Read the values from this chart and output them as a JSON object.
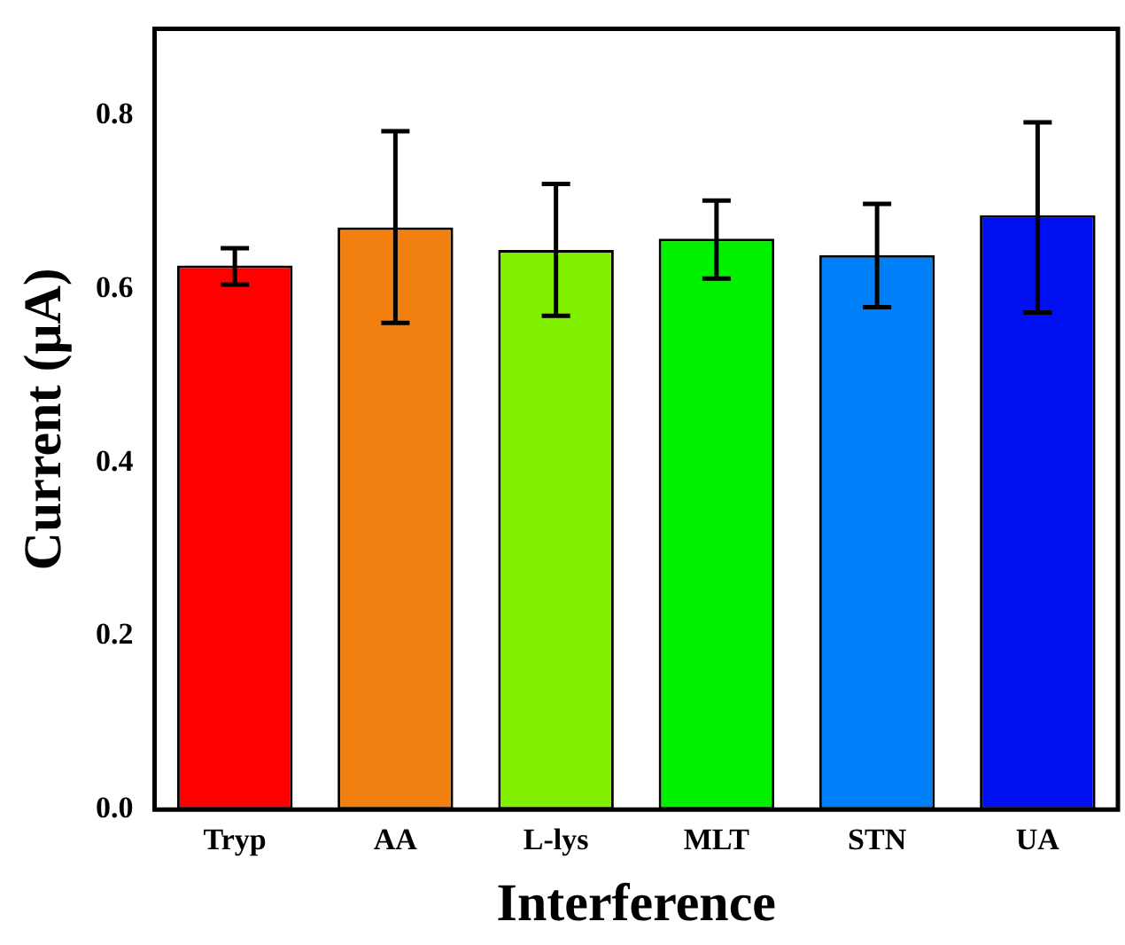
{
  "chart_data": {
    "type": "bar",
    "xlabel": "Interference",
    "ylabel": "Current (μA)",
    "categories": [
      "Tryp",
      "AA",
      "L-lys",
      "MLT",
      "STN",
      "UA"
    ],
    "values": [
      0.627,
      0.671,
      0.645,
      0.658,
      0.639,
      0.685
    ],
    "errors": [
      [
        0.605,
        0.647
      ],
      [
        0.561,
        0.782
      ],
      [
        0.569,
        0.721
      ],
      [
        0.612,
        0.702
      ],
      [
        0.579,
        0.698
      ],
      [
        0.573,
        0.792
      ]
    ],
    "colors": [
      "#ff0000",
      "#f28010",
      "#80f000",
      "#00f000",
      "#0080f8",
      "#0010f0"
    ],
    "ylim": [
      0,
      0.9
    ],
    "yticks": [
      {
        "value": 0,
        "label": "0.0"
      },
      0.2,
      0.4,
      0.6,
      0.8
    ],
    "grid": false,
    "legend": false
  }
}
